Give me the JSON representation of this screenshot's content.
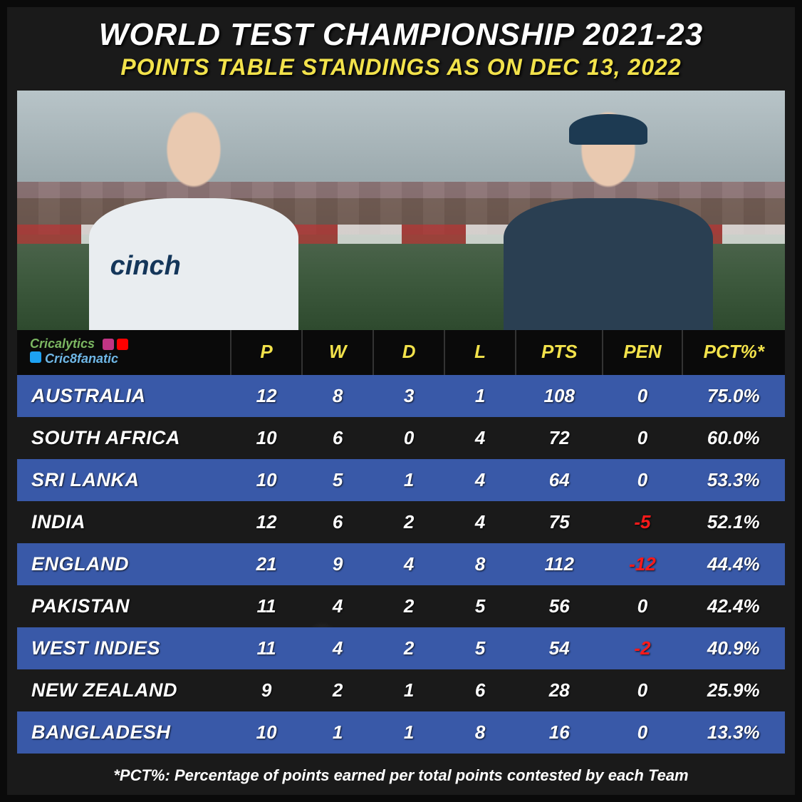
{
  "header": {
    "title": "WORLD TEST CHAMPIONSHIP 2021-23",
    "title_color": "#ffffff",
    "title_fontsize": 44,
    "title_fontweight": 900,
    "subtitle": "POINTS TABLE STANDINGS AS ON DEC 13, 2022",
    "subtitle_color": "#f2e24b",
    "subtitle_fontsize": 32,
    "subtitle_fontweight": 900
  },
  "branding": {
    "line1": "Cricalytics",
    "line1_color": "#7bb661",
    "line2": "Cric8fanatic",
    "line2_color": "#6fb7e6",
    "icons": {
      "instagram_color": "#c13584",
      "youtube_color": "#ff0000",
      "twitter_color": "#1da1f2"
    }
  },
  "hero": {
    "sponsor_text": "cinch",
    "sponsor_color": "#14365a"
  },
  "table": {
    "header_bg": "#0a0a0a",
    "header_color": "#f2e24b",
    "header_fontsize": 26,
    "row_blue_bg": "#3959a8",
    "row_dark_bg": "transparent",
    "cell_text_color": "#ffffff",
    "cell_fontsize": 26,
    "team_fontsize": 27,
    "penalty_neg_color": "#ff1a1a",
    "columns": [
      "P",
      "W",
      "D",
      "L",
      "PTS",
      "PEN",
      "PCT%*"
    ],
    "rows": [
      {
        "team": "AUSTRALIA",
        "p": "12",
        "w": "8",
        "d": "3",
        "l": "1",
        "pts": "108",
        "pen": "0",
        "pct": "75.0%",
        "band": "blue"
      },
      {
        "team": "SOUTH AFRICA",
        "p": "10",
        "w": "6",
        "d": "0",
        "l": "4",
        "pts": "72",
        "pen": "0",
        "pct": "60.0%",
        "band": "dark"
      },
      {
        "team": "SRI LANKA",
        "p": "10",
        "w": "5",
        "d": "1",
        "l": "4",
        "pts": "64",
        "pen": "0",
        "pct": "53.3%",
        "band": "blue"
      },
      {
        "team": "INDIA",
        "p": "12",
        "w": "6",
        "d": "2",
        "l": "4",
        "pts": "75",
        "pen": "-5",
        "pct": "52.1%",
        "band": "dark"
      },
      {
        "team": "ENGLAND",
        "p": "21",
        "w": "9",
        "d": "4",
        "l": "8",
        "pts": "112",
        "pen": "-12",
        "pct": "44.4%",
        "band": "blue"
      },
      {
        "team": "PAKISTAN",
        "p": "11",
        "w": "4",
        "d": "2",
        "l": "5",
        "pts": "56",
        "pen": "0",
        "pct": "42.4%",
        "band": "dark"
      },
      {
        "team": "WEST INDIES",
        "p": "11",
        "w": "4",
        "d": "2",
        "l": "5",
        "pts": "54",
        "pen": "-2",
        "pct": "40.9%",
        "band": "blue"
      },
      {
        "team": "NEW ZEALAND",
        "p": "9",
        "w": "2",
        "d": "1",
        "l": "6",
        "pts": "28",
        "pen": "0",
        "pct": "25.9%",
        "band": "dark"
      },
      {
        "team": "BANGLADESH",
        "p": "10",
        "w": "1",
        "d": "1",
        "l": "8",
        "pts": "16",
        "pen": "0",
        "pct": "13.3%",
        "band": "blue"
      }
    ]
  },
  "footnote": {
    "text": "*PCT%: Percentage of points earned per total points contested by each Team",
    "color": "#ffffff",
    "fontsize": 22
  },
  "frame": {
    "background": "#1a1a1a",
    "border_color": "#0a0a0a",
    "border_width": 10
  }
}
